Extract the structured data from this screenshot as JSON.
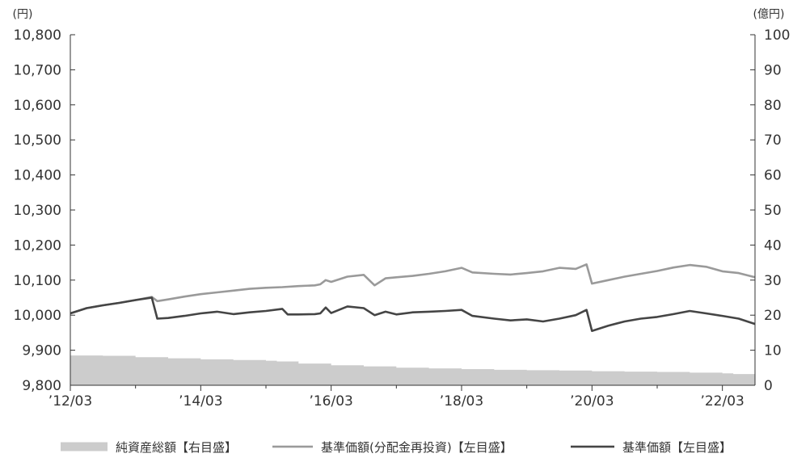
{
  "chart_data": {
    "type": "line",
    "left_unit": "(円)",
    "right_unit": "(億円)",
    "x_tick_labels": [
      "’12/03",
      "’14/03",
      "’16/03",
      "’18/03",
      "’20/03",
      "’22/03"
    ],
    "y_left": {
      "ylim": [
        9800,
        10800
      ],
      "ticks": [
        "9,800",
        "9,900",
        "10,000",
        "10,100",
        "10,200",
        "10,300",
        "10,400",
        "10,500",
        "10,600",
        "10,700",
        "10,800"
      ]
    },
    "y_right": {
      "ylim": [
        0,
        100
      ],
      "ticks": [
        "0",
        "10",
        "20",
        "30",
        "40",
        "50",
        "60",
        "70",
        "80",
        "90",
        "100"
      ]
    },
    "x_range": [
      "2012-03",
      "2022-09"
    ],
    "series": [
      {
        "name": "純資産総額【右目盛】",
        "chart_type": "area",
        "axis": "right",
        "color": "#cccccc",
        "points": [
          [
            "2012-03",
            8.5
          ],
          [
            "2012-09",
            8.4
          ],
          [
            "2013-03",
            8.0
          ],
          [
            "2013-09",
            7.7
          ],
          [
            "2014-03",
            7.4
          ],
          [
            "2014-09",
            7.2
          ],
          [
            "2015-03",
            7.0
          ],
          [
            "2015-05",
            6.8
          ],
          [
            "2015-09",
            6.2
          ],
          [
            "2016-03",
            5.7
          ],
          [
            "2016-09",
            5.4
          ],
          [
            "2017-03",
            5.0
          ],
          [
            "2017-09",
            4.8
          ],
          [
            "2018-03",
            4.6
          ],
          [
            "2018-09",
            4.4
          ],
          [
            "2019-03",
            4.3
          ],
          [
            "2019-09",
            4.2
          ],
          [
            "2020-03",
            4.0
          ],
          [
            "2020-09",
            3.9
          ],
          [
            "2021-03",
            3.8
          ],
          [
            "2021-09",
            3.6
          ],
          [
            "2022-03",
            3.4
          ],
          [
            "2022-05",
            3.2
          ],
          [
            "2022-09",
            3.0
          ]
        ]
      },
      {
        "name": "基準価額(分配金再投資)【左目盛】",
        "chart_type": "line",
        "axis": "left",
        "color": "#9a9a9a",
        "points": [
          [
            "2012-03",
            10005
          ],
          [
            "2012-06",
            10020
          ],
          [
            "2012-09",
            10028
          ],
          [
            "2012-12",
            10035
          ],
          [
            "2013-03",
            10043
          ],
          [
            "2013-06",
            10052
          ],
          [
            "2013-07",
            10040
          ],
          [
            "2013-09",
            10045
          ],
          [
            "2013-12",
            10053
          ],
          [
            "2014-03",
            10060
          ],
          [
            "2014-06",
            10065
          ],
          [
            "2014-09",
            10070
          ],
          [
            "2014-12",
            10075
          ],
          [
            "2015-03",
            10078
          ],
          [
            "2015-06",
            10080
          ],
          [
            "2015-09",
            10083
          ],
          [
            "2015-12",
            10085
          ],
          [
            "2016-01",
            10088
          ],
          [
            "2016-02",
            10100
          ],
          [
            "2016-03",
            10095
          ],
          [
            "2016-06",
            10110
          ],
          [
            "2016-09",
            10115
          ],
          [
            "2016-11",
            10085
          ],
          [
            "2017-01",
            10105
          ],
          [
            "2017-03",
            10108
          ],
          [
            "2017-06",
            10112
          ],
          [
            "2017-09",
            10118
          ],
          [
            "2017-12",
            10125
          ],
          [
            "2018-03",
            10135
          ],
          [
            "2018-05",
            10122
          ],
          [
            "2018-09",
            10118
          ],
          [
            "2018-12",
            10116
          ],
          [
            "2019-03",
            10120
          ],
          [
            "2019-06",
            10125
          ],
          [
            "2019-09",
            10135
          ],
          [
            "2019-12",
            10132
          ],
          [
            "2020-02",
            10145
          ],
          [
            "2020-03",
            10090
          ],
          [
            "2020-06",
            10100
          ],
          [
            "2020-09",
            10110
          ],
          [
            "2020-12",
            10118
          ],
          [
            "2021-03",
            10126
          ],
          [
            "2021-06",
            10136
          ],
          [
            "2021-09",
            10143
          ],
          [
            "2021-12",
            10138
          ],
          [
            "2022-03",
            10125
          ],
          [
            "2022-06",
            10120
          ],
          [
            "2022-09",
            10108
          ]
        ]
      },
      {
        "name": "基準価額【左目盛】",
        "chart_type": "line",
        "axis": "left",
        "color": "#454545",
        "points": [
          [
            "2012-03",
            10005
          ],
          [
            "2012-06",
            10020
          ],
          [
            "2012-09",
            10028
          ],
          [
            "2012-12",
            10035
          ],
          [
            "2013-03",
            10043
          ],
          [
            "2013-06",
            10050
          ],
          [
            "2013-07",
            9990
          ],
          [
            "2013-09",
            9992
          ],
          [
            "2013-12",
            9998
          ],
          [
            "2014-03",
            10005
          ],
          [
            "2014-06",
            10010
          ],
          [
            "2014-09",
            10003
          ],
          [
            "2014-12",
            10008
          ],
          [
            "2015-03",
            10012
          ],
          [
            "2015-06",
            10018
          ],
          [
            "2015-07",
            10002
          ],
          [
            "2015-09",
            10002
          ],
          [
            "2015-12",
            10003
          ],
          [
            "2016-01",
            10005
          ],
          [
            "2016-02",
            10022
          ],
          [
            "2016-03",
            10006
          ],
          [
            "2016-06",
            10025
          ],
          [
            "2016-09",
            10020
          ],
          [
            "2016-11",
            10000
          ],
          [
            "2017-01",
            10010
          ],
          [
            "2017-03",
            10002
          ],
          [
            "2017-06",
            10008
          ],
          [
            "2017-09",
            10010
          ],
          [
            "2017-12",
            10012
          ],
          [
            "2018-03",
            10015
          ],
          [
            "2018-05",
            9998
          ],
          [
            "2018-09",
            9990
          ],
          [
            "2018-12",
            9985
          ],
          [
            "2019-03",
            9988
          ],
          [
            "2019-06",
            9982
          ],
          [
            "2019-09",
            9990
          ],
          [
            "2019-12",
            10000
          ],
          [
            "2020-02",
            10015
          ],
          [
            "2020-03",
            9955
          ],
          [
            "2020-06",
            9970
          ],
          [
            "2020-09",
            9982
          ],
          [
            "2020-12",
            9990
          ],
          [
            "2021-03",
            9995
          ],
          [
            "2021-06",
            10003
          ],
          [
            "2021-09",
            10012
          ],
          [
            "2021-12",
            10005
          ],
          [
            "2022-03",
            9998
          ],
          [
            "2022-06",
            9990
          ],
          [
            "2022-09",
            9975
          ]
        ]
      }
    ],
    "legend_position": "bottom",
    "grid": false
  }
}
